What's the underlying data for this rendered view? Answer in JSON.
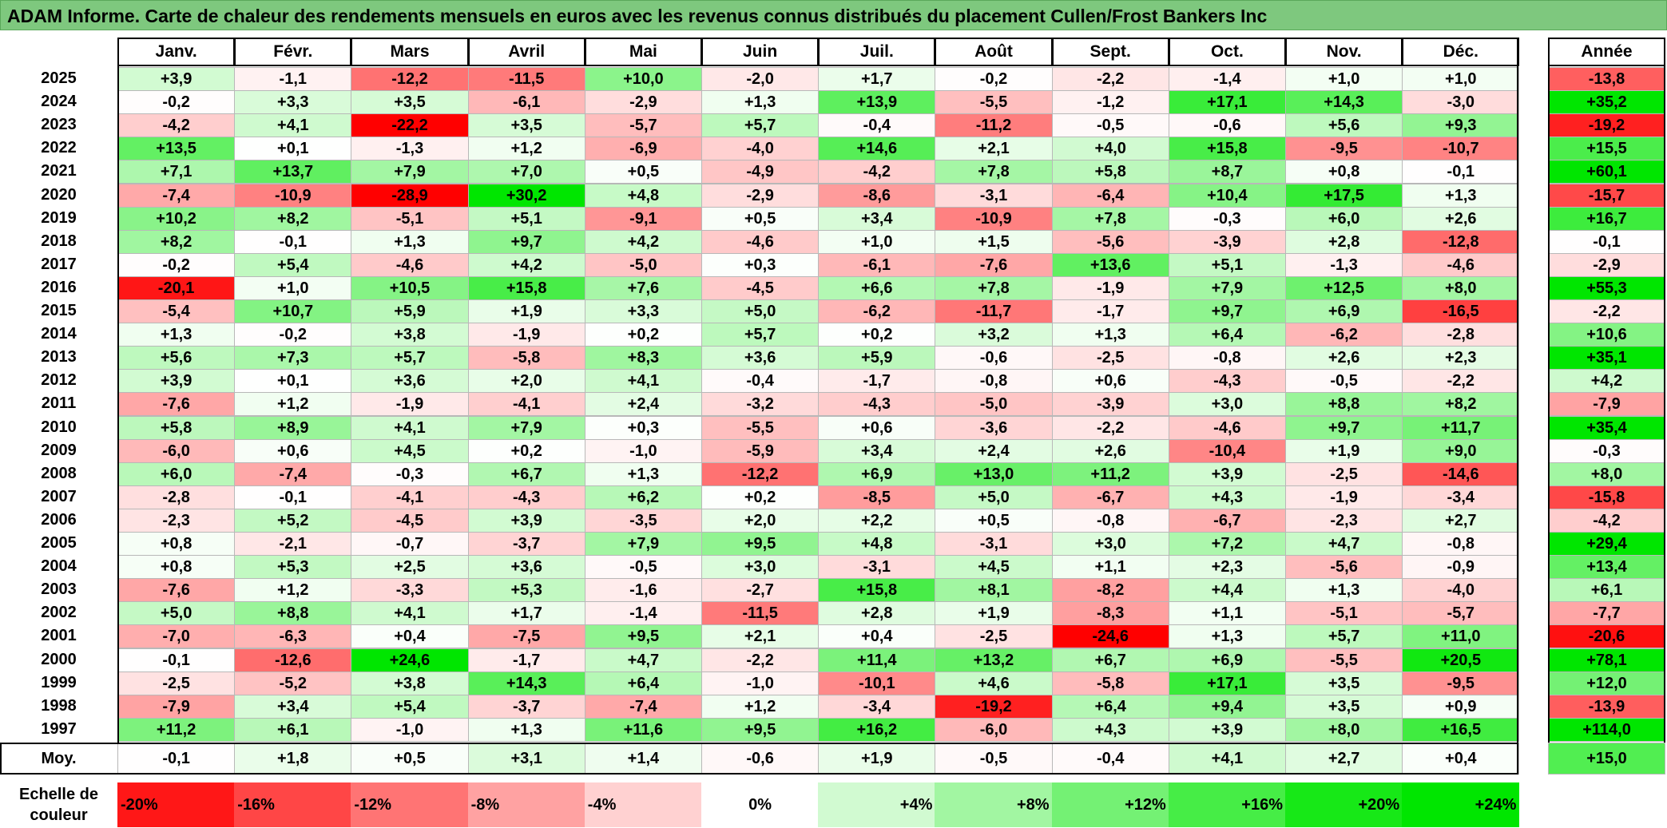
{
  "title": "ADAM Informe. Carte de chaleur des rendements mensuels en euros avec les revenus connus distribués du placement Cullen/Frost Bankers Inc",
  "chart_data": {
    "type": "heatmap",
    "columns": [
      "Janv.",
      "Févr.",
      "Mars",
      "Avril",
      "Mai",
      "Juin",
      "Juil.",
      "Août",
      "Sept.",
      "Oct.",
      "Nov.",
      "Déc."
    ],
    "year_header": "Année",
    "avg_label": "Moy.",
    "rows": [
      {
        "year": "2025",
        "values": [
          "+3,9",
          "-1,1",
          "-12,2",
          "-11,5",
          "+10,0",
          "-2,0",
          "+1,7",
          "-0,2",
          "-2,2",
          "-1,4",
          "+1,0",
          "+1,0"
        ],
        "annual": "-13,8"
      },
      {
        "year": "2024",
        "values": [
          "-0,2",
          "+3,3",
          "+3,5",
          "-6,1",
          "-2,9",
          "+1,3",
          "+13,9",
          "-5,5",
          "-1,2",
          "+17,1",
          "+14,3",
          "-3,0"
        ],
        "annual": "+35,2"
      },
      {
        "year": "2023",
        "values": [
          "-4,2",
          "+4,1",
          "-22,2",
          "+3,5",
          "-5,7",
          "+5,7",
          "-0,4",
          "-11,2",
          "-0,5",
          "-0,6",
          "+5,6",
          "+9,3"
        ],
        "annual": "-19,2"
      },
      {
        "year": "2022",
        "values": [
          "+13,5",
          "+0,1",
          "-1,3",
          "+1,2",
          "-6,9",
          "-4,0",
          "+14,6",
          "+2,1",
          "+4,0",
          "+15,8",
          "-9,5",
          "-10,7"
        ],
        "annual": "+15,5"
      },
      {
        "year": "2021",
        "values": [
          "+7,1",
          "+13,7",
          "+7,9",
          "+7,0",
          "+0,5",
          "-4,9",
          "-4,2",
          "+7,8",
          "+5,8",
          "+8,7",
          "+0,8",
          "-0,1"
        ],
        "annual": "+60,1"
      },
      {
        "year": "2020",
        "values": [
          "-7,4",
          "-10,9",
          "-28,9",
          "+30,2",
          "+4,8",
          "-2,9",
          "-8,6",
          "-3,1",
          "-6,4",
          "+10,4",
          "+17,5",
          "+1,3"
        ],
        "annual": "-15,7"
      },
      {
        "year": "2019",
        "values": [
          "+10,2",
          "+8,2",
          "-5,1",
          "+5,1",
          "-9,1",
          "+0,5",
          "+3,4",
          "-10,9",
          "+7,8",
          "-0,3",
          "+6,0",
          "+2,6"
        ],
        "annual": "+16,7"
      },
      {
        "year": "2018",
        "values": [
          "+8,2",
          "-0,1",
          "+1,3",
          "+9,7",
          "+4,2",
          "-4,6",
          "+1,0",
          "+1,5",
          "-5,6",
          "-3,9",
          "+2,8",
          "-12,8"
        ],
        "annual": "-0,1"
      },
      {
        "year": "2017",
        "values": [
          "-0,2",
          "+5,4",
          "-4,6",
          "+4,2",
          "-5,0",
          "+0,3",
          "-6,1",
          "-7,6",
          "+13,6",
          "+5,1",
          "-1,3",
          "-4,6"
        ],
        "annual": "-2,9"
      },
      {
        "year": "2016",
        "values": [
          "-20,1",
          "+1,0",
          "+10,5",
          "+15,8",
          "+7,6",
          "-4,5",
          "+6,6",
          "+7,8",
          "-1,9",
          "+7,9",
          "+12,5",
          "+8,0"
        ],
        "annual": "+55,3"
      },
      {
        "year": "2015",
        "values": [
          "-5,4",
          "+10,7",
          "+5,9",
          "+1,9",
          "+3,3",
          "+5,0",
          "-6,2",
          "-11,7",
          "-1,7",
          "+9,7",
          "+6,9",
          "-16,5"
        ],
        "annual": "-2,2"
      },
      {
        "year": "2014",
        "values": [
          "+1,3",
          "-0,2",
          "+3,8",
          "-1,9",
          "+0,2",
          "+5,7",
          "+0,2",
          "+3,2",
          "+1,3",
          "+6,4",
          "-6,2",
          "-2,8"
        ],
        "annual": "+10,6"
      },
      {
        "year": "2013",
        "values": [
          "+5,6",
          "+7,3",
          "+5,7",
          "-5,8",
          "+8,3",
          "+3,6",
          "+5,9",
          "-0,6",
          "-2,5",
          "-0,8",
          "+2,6",
          "+2,3"
        ],
        "annual": "+35,1"
      },
      {
        "year": "2012",
        "values": [
          "+3,9",
          "+0,1",
          "+3,6",
          "+2,0",
          "+4,1",
          "-0,4",
          "-1,7",
          "-0,8",
          "+0,6",
          "-4,3",
          "-0,5",
          "-2,2"
        ],
        "annual": "+4,2"
      },
      {
        "year": "2011",
        "values": [
          "-7,6",
          "+1,2",
          "-1,9",
          "-4,1",
          "+2,4",
          "-3,2",
          "-4,3",
          "-5,0",
          "-3,9",
          "+3,0",
          "+8,8",
          "+8,2"
        ],
        "annual": "-7,9"
      },
      {
        "year": "2010",
        "values": [
          "+5,8",
          "+8,9",
          "+4,1",
          "+7,9",
          "+0,3",
          "-5,5",
          "+0,6",
          "-3,6",
          "-2,2",
          "-4,6",
          "+9,7",
          "+11,7"
        ],
        "annual": "+35,4"
      },
      {
        "year": "2009",
        "values": [
          "-6,0",
          "+0,6",
          "+4,5",
          "+0,2",
          "-1,0",
          "-5,9",
          "+3,4",
          "+2,4",
          "+2,6",
          "-10,4",
          "+1,9",
          "+9,0"
        ],
        "annual": "-0,3"
      },
      {
        "year": "2008",
        "values": [
          "+6,0",
          "-7,4",
          "-0,3",
          "+6,7",
          "+1,3",
          "-12,2",
          "+6,9",
          "+13,0",
          "+11,2",
          "+3,9",
          "-2,5",
          "-14,6"
        ],
        "annual": "+8,0"
      },
      {
        "year": "2007",
        "values": [
          "-2,8",
          "-0,1",
          "-4,1",
          "-4,3",
          "+6,2",
          "+0,2",
          "-8,5",
          "+5,0",
          "-6,7",
          "+4,3",
          "-1,9",
          "-3,4"
        ],
        "annual": "-15,8"
      },
      {
        "year": "2006",
        "values": [
          "-2,3",
          "+5,2",
          "-4,5",
          "+3,9",
          "-3,5",
          "+2,0",
          "+2,2",
          "+0,5",
          "-0,8",
          "-6,7",
          "-2,3",
          "+2,7"
        ],
        "annual": "-4,2"
      },
      {
        "year": "2005",
        "values": [
          "+0,8",
          "-2,1",
          "-0,7",
          "-3,7",
          "+7,9",
          "+9,5",
          "+4,8",
          "-3,1",
          "+3,0",
          "+7,2",
          "+4,7",
          "-0,8"
        ],
        "annual": "+29,4"
      },
      {
        "year": "2004",
        "values": [
          "+0,8",
          "+5,3",
          "+2,5",
          "+3,6",
          "-0,5",
          "+3,0",
          "-3,1",
          "+4,5",
          "+1,1",
          "+2,3",
          "-5,6",
          "-0,9"
        ],
        "annual": "+13,4"
      },
      {
        "year": "2003",
        "values": [
          "-7,6",
          "+1,2",
          "-3,3",
          "+5,3",
          "-1,6",
          "-2,7",
          "+15,8",
          "+8,1",
          "-8,2",
          "+4,4",
          "+1,3",
          "-4,0"
        ],
        "annual": "+6,1"
      },
      {
        "year": "2002",
        "values": [
          "+5,0",
          "+8,8",
          "+4,1",
          "+1,7",
          "-1,4",
          "-11,5",
          "+2,8",
          "+1,9",
          "-8,3",
          "+1,1",
          "-5,1",
          "-5,7"
        ],
        "annual": "-7,7"
      },
      {
        "year": "2001",
        "values": [
          "-7,0",
          "-6,3",
          "+0,4",
          "-7,5",
          "+9,5",
          "+2,1",
          "+0,4",
          "-2,5",
          "-24,6",
          "+1,3",
          "+5,7",
          "+11,0"
        ],
        "annual": "-20,6"
      },
      {
        "year": "2000",
        "values": [
          "-0,1",
          "-12,6",
          "+24,6",
          "-1,7",
          "+4,7",
          "-2,2",
          "+11,4",
          "+13,2",
          "+6,7",
          "+6,9",
          "-5,5",
          "+20,5"
        ],
        "annual": "+78,1"
      },
      {
        "year": "1999",
        "values": [
          "-2,5",
          "-5,2",
          "+3,8",
          "+14,3",
          "+6,4",
          "-1,0",
          "-10,1",
          "+4,6",
          "-5,8",
          "+17,1",
          "+3,5",
          "-9,5"
        ],
        "annual": "+12,0"
      },
      {
        "year": "1998",
        "values": [
          "-7,9",
          "+3,4",
          "+5,4",
          "-3,7",
          "-7,4",
          "+1,2",
          "-3,4",
          "-19,2",
          "+6,4",
          "+9,4",
          "+3,5",
          "+0,9"
        ],
        "annual": "-13,9"
      },
      {
        "year": "1997",
        "values": [
          "+11,2",
          "+6,1",
          "-1,0",
          "+1,3",
          "+11,6",
          "+9,5",
          "+16,2",
          "-6,0",
          "+4,3",
          "+3,9",
          "+8,0",
          "+16,5"
        ],
        "annual": "+114,0"
      }
    ],
    "averages": [
      "-0,1",
      "+1,8",
      "+0,5",
      "+3,1",
      "+1,4",
      "-0,6",
      "+1,9",
      "-0,5",
      "-0,4",
      "+4,1",
      "+2,7",
      "+0,4"
    ],
    "annual_average": "+15,0"
  },
  "scale": {
    "label_line1": "Echelle de",
    "label_line2": "couleur",
    "items": [
      "-20%",
      "-16%",
      "-12%",
      "-8%",
      "-4%",
      "0%",
      "+4%",
      "+8%",
      "+12%",
      "+16%",
      "+20%",
      "+24%"
    ]
  },
  "colors": {
    "title_bg": "#7ec87e",
    "max_red": "#ff0000",
    "max_green": "#00e600",
    "neutral": "#ffffff"
  }
}
